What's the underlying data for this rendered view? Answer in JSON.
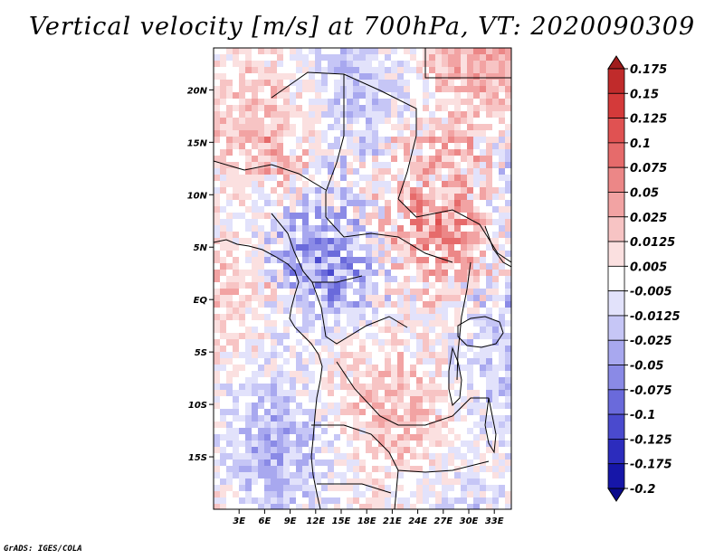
{
  "chart_data": {
    "type": "heatmap",
    "title": "Vertical velocity [m/s] at 700hPa, VT: 2020090309",
    "variable": "Vertical velocity",
    "units": "m/s",
    "level": "700hPa",
    "valid_time": "2020090309",
    "lon_range": [
      0,
      35
    ],
    "lat_range": [
      -20,
      24
    ],
    "x_ticks": [
      {
        "value": 3,
        "label": "3E"
      },
      {
        "value": 6,
        "label": "6E"
      },
      {
        "value": 9,
        "label": "9E"
      },
      {
        "value": 12,
        "label": "12E"
      },
      {
        "value": 15,
        "label": "15E"
      },
      {
        "value": 18,
        "label": "18E"
      },
      {
        "value": 21,
        "label": "21E"
      },
      {
        "value": 24,
        "label": "24E"
      },
      {
        "value": 27,
        "label": "27E"
      },
      {
        "value": 30,
        "label": "30E"
      },
      {
        "value": 33,
        "label": "33E"
      }
    ],
    "y_ticks": [
      {
        "value": 20,
        "label": "20N"
      },
      {
        "value": 15,
        "label": "15N"
      },
      {
        "value": 10,
        "label": "10N"
      },
      {
        "value": 5,
        "label": "5N"
      },
      {
        "value": 0,
        "label": "EQ"
      },
      {
        "value": -5,
        "label": "5S"
      },
      {
        "value": -10,
        "label": "10S"
      },
      {
        "value": -15,
        "label": "15S"
      }
    ],
    "colorbar": {
      "labels": [
        "0.175",
        "0.15",
        "0.125",
        "0.1",
        "0.075",
        "0.05",
        "0.025",
        "0.0125",
        "0.005",
        "-0.005",
        "-0.0125",
        "-0.025",
        "-0.05",
        "-0.075",
        "-0.1",
        "-0.125",
        "-0.175",
        "-0.2"
      ],
      "colors": [
        "#a01c1c",
        "#c02b2b",
        "#d43a3a",
        "#e05252",
        "#e66b6b",
        "#ec8787",
        "#f2a3a3",
        "#f7c4c4",
        "#fbe0e0",
        "#ffffff",
        "#e2e2fb",
        "#c6c6f6",
        "#a8a8ef",
        "#8a8ae6",
        "#6a6adb",
        "#4a4ace",
        "#2c2cbd",
        "#1616a8",
        "#0a0a8c"
      ]
    }
  },
  "footer": {
    "credit": "GrADS: IGES/COLA"
  }
}
